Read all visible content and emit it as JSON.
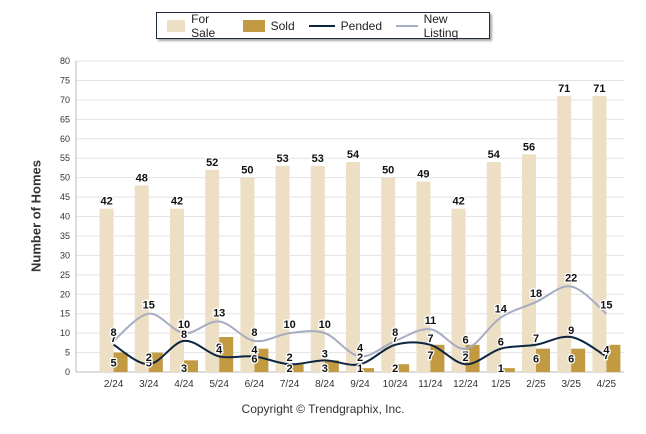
{
  "chart_data": {
    "type": "bar",
    "title": "",
    "ylabel": "Number of Homes",
    "xlabel": "",
    "ylim": [
      0,
      80
    ],
    "yticks": [
      0,
      5,
      10,
      15,
      20,
      25,
      30,
      35,
      40,
      45,
      50,
      55,
      60,
      65,
      70,
      75,
      80
    ],
    "grid": true,
    "legend_position": "top-center",
    "categories": [
      "2/24",
      "3/24",
      "4/24",
      "5/24",
      "6/24",
      "7/24",
      "8/24",
      "9/24",
      "10/24",
      "11/24",
      "12/24",
      "1/25",
      "2/25",
      "3/25",
      "4/25"
    ],
    "series": [
      {
        "name": "For Sale",
        "kind": "bar",
        "color": "#eddfc3",
        "values": [
          42,
          48,
          42,
          52,
          50,
          53,
          53,
          54,
          50,
          49,
          42,
          54,
          56,
          71,
          71
        ]
      },
      {
        "name": "Sold",
        "kind": "bar",
        "color": "#c19a42",
        "values": [
          5,
          5,
          3,
          9,
          6,
          2,
          3,
          1,
          2,
          7,
          7,
          1,
          6,
          6,
          7
        ]
      },
      {
        "name": "Pended",
        "kind": "line",
        "color": "#0d2540",
        "values": [
          7,
          2,
          8,
          4,
          4,
          2,
          3,
          2,
          7,
          7,
          2,
          6,
          7,
          9,
          4
        ]
      },
      {
        "name": "New Listing",
        "kind": "line",
        "color": "#a6adc2",
        "values": [
          8,
          15,
          10,
          13,
          8,
          10,
          10,
          4,
          8,
          11,
          6,
          14,
          18,
          22,
          15
        ]
      }
    ]
  },
  "legend": {
    "items": [
      {
        "label": "For Sale",
        "color": "#eddfc3",
        "kind": "bar"
      },
      {
        "label": "Sold",
        "color": "#c19a42",
        "kind": "bar"
      },
      {
        "label": "Pended",
        "color": "#0d2540",
        "kind": "line"
      },
      {
        "label": "New Listing",
        "color": "#a6adc2",
        "kind": "line"
      }
    ]
  },
  "footer": {
    "copyright": "Copyright © Trendgraphix, Inc."
  }
}
